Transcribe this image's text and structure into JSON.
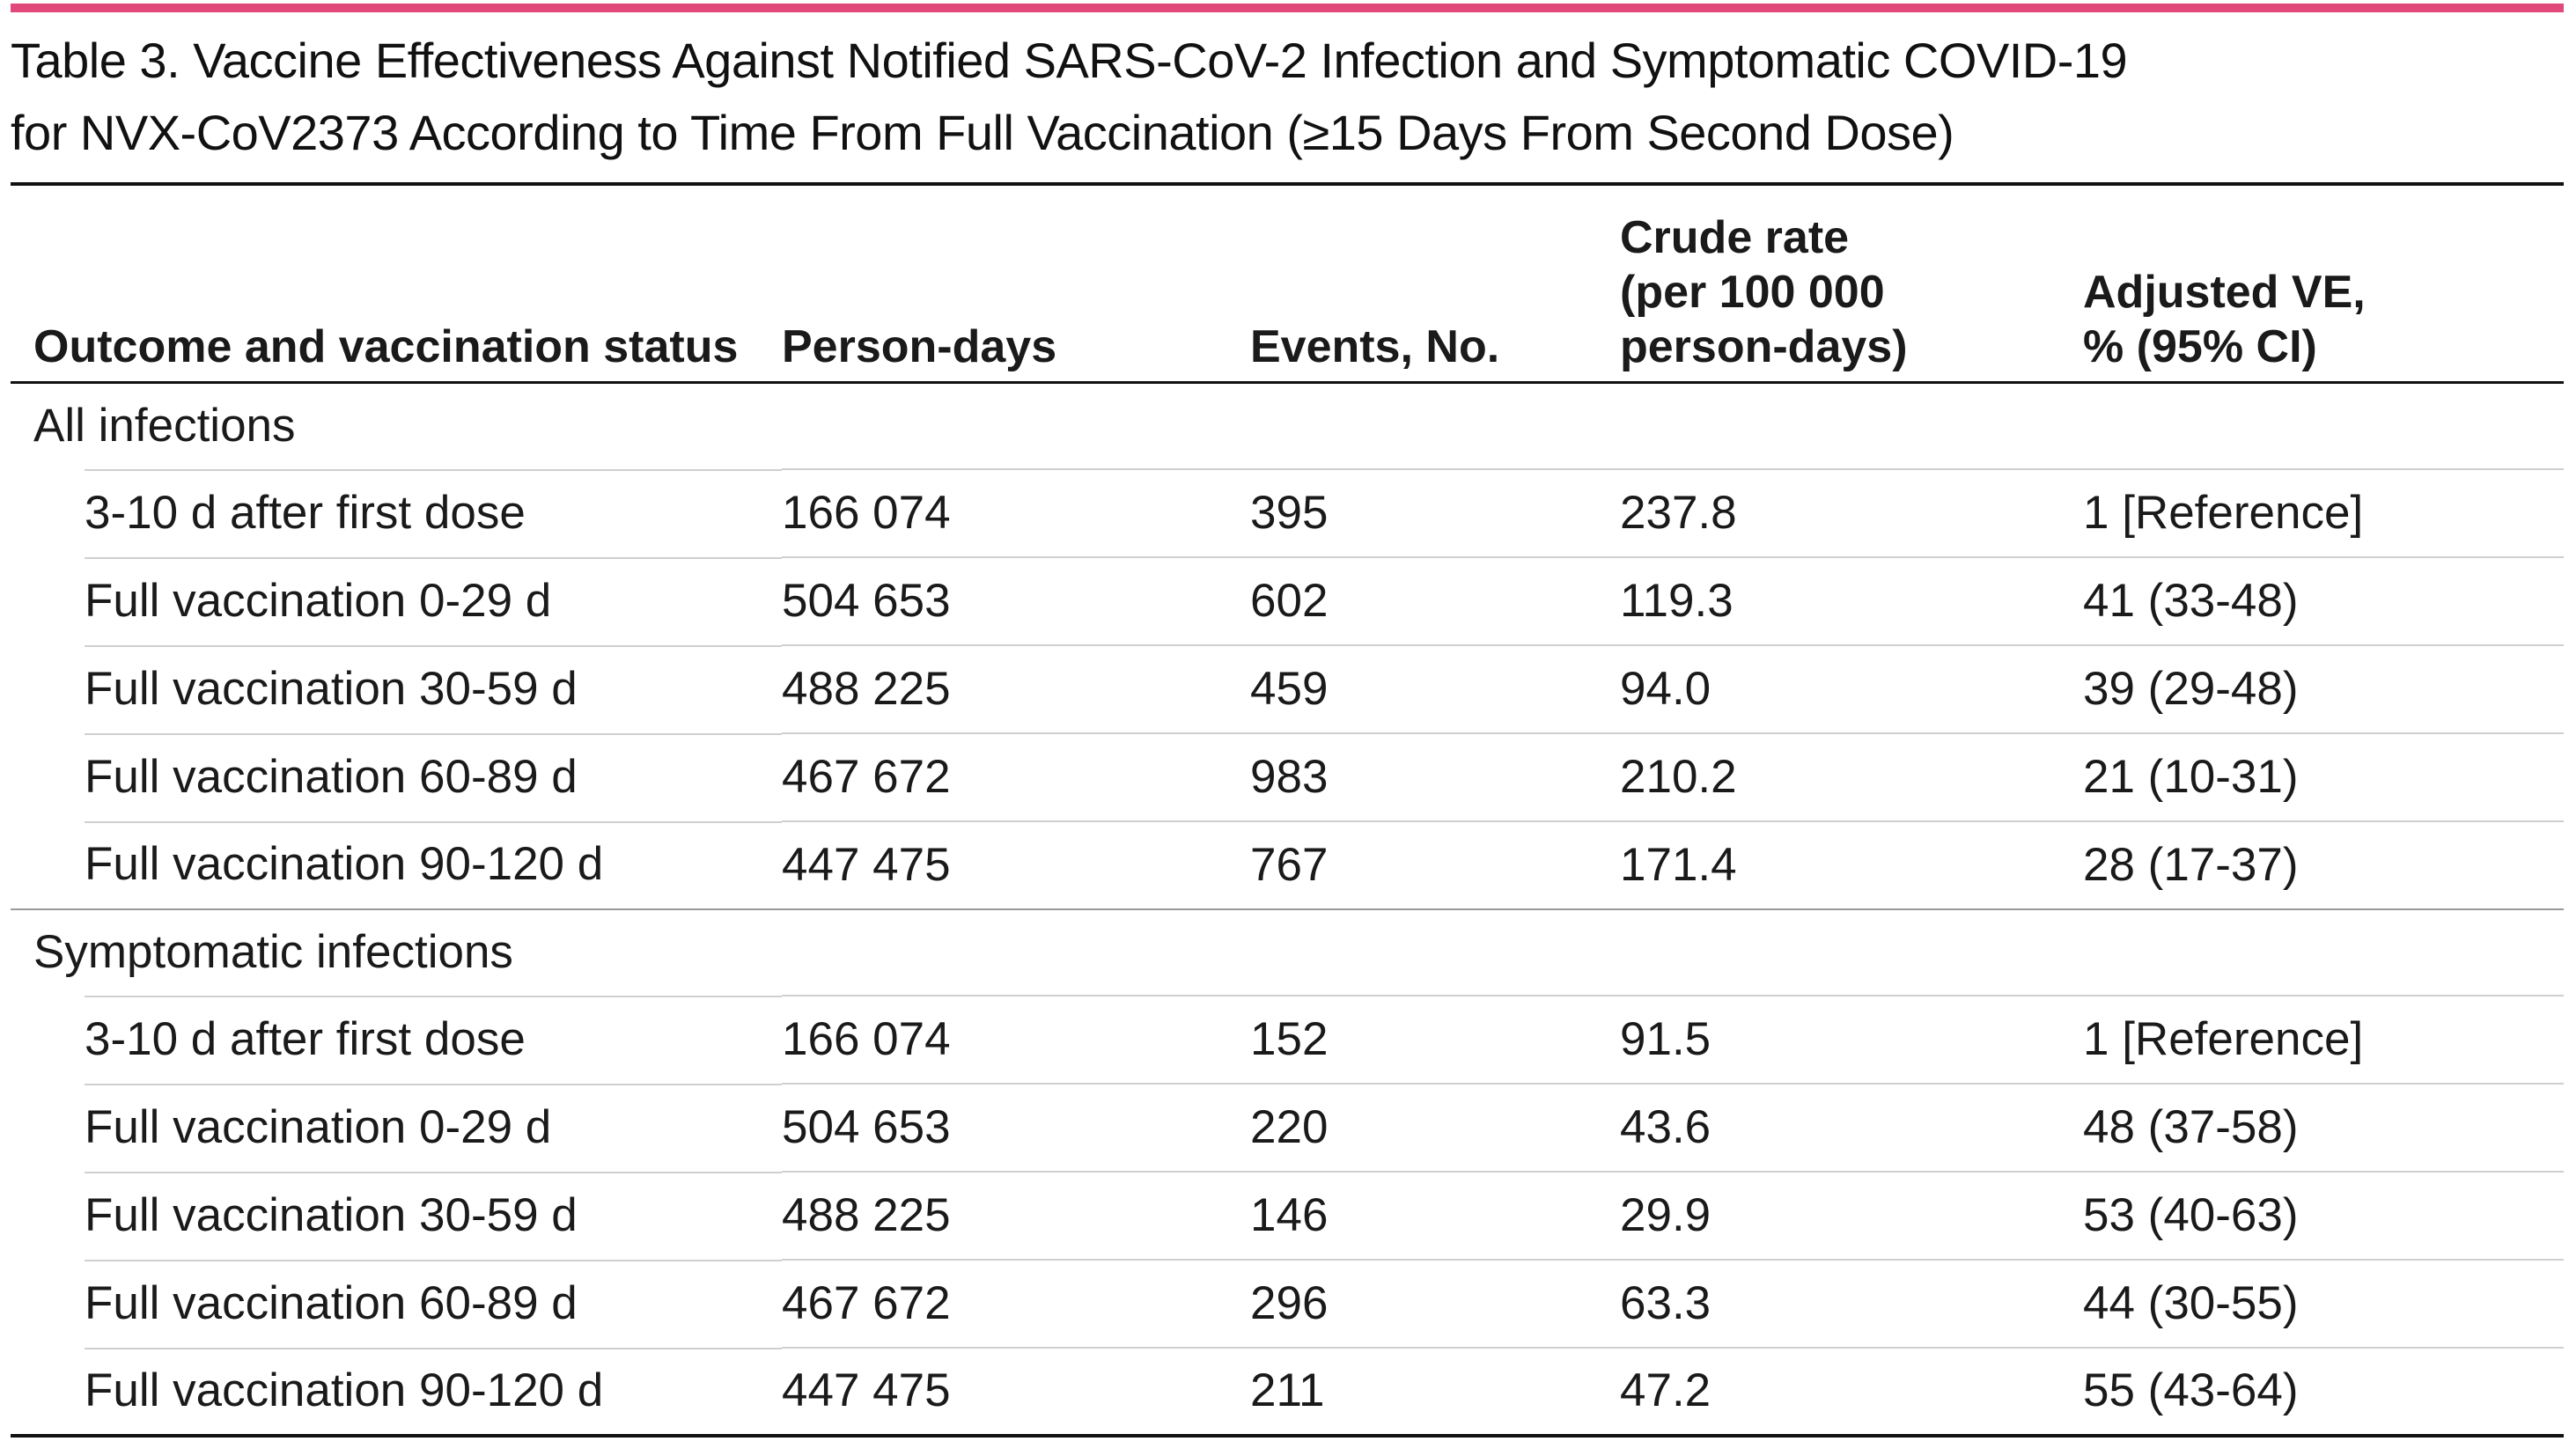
{
  "table_title": {
    "line1": "Table 3. Vaccine Effectiveness Against Notified SARS-CoV-2 Infection and Symptomatic COVID-19",
    "line2": "for NVX-CoV2373 According to Time From Full Vaccination (≥15 Days From Second Dose)"
  },
  "accent_color": "#e0497a",
  "columns": {
    "outcome": "Outcome and vaccination status",
    "person_days": "Person-days",
    "events": "Events, No.",
    "crude_rate_l1": "Crude rate",
    "crude_rate_l2": "(per 100 000",
    "crude_rate_l3": "person-days)",
    "adj_ve_l1": "Adjusted VE,",
    "adj_ve_l2": "% (95% CI)"
  },
  "groups": [
    {
      "label": "All infections",
      "rows": [
        {
          "status": "3-10 d after first dose",
          "person_days": "166 074",
          "events": "395",
          "crude_rate": "237.8",
          "adjusted_ve": "1 [Reference]"
        },
        {
          "status": "Full vaccination 0-29 d",
          "person_days": "504 653",
          "events": "602",
          "crude_rate": "119.3",
          "adjusted_ve": "41 (33-48)"
        },
        {
          "status": "Full vaccination 30-59 d",
          "person_days": "488 225",
          "events": "459",
          "crude_rate": "94.0",
          "adjusted_ve": "39 (29-48)"
        },
        {
          "status": "Full vaccination 60-89 d",
          "person_days": "467 672",
          "events": "983",
          "crude_rate": "210.2",
          "adjusted_ve": "21 (10-31)"
        },
        {
          "status": "Full vaccination 90-120 d",
          "person_days": "447 475",
          "events": "767",
          "crude_rate": "171.4",
          "adjusted_ve": "28 (17-37)"
        }
      ]
    },
    {
      "label": "Symptomatic infections",
      "rows": [
        {
          "status": "3-10 d after first dose",
          "person_days": "166 074",
          "events": "152",
          "crude_rate": "91.5",
          "adjusted_ve": "1 [Reference]"
        },
        {
          "status": "Full vaccination 0-29 d",
          "person_days": "504 653",
          "events": "220",
          "crude_rate": "43.6",
          "adjusted_ve": "48 (37-58)"
        },
        {
          "status": "Full vaccination 30-59 d",
          "person_days": "488 225",
          "events": "146",
          "crude_rate": "29.9",
          "adjusted_ve": "53 (40-63)"
        },
        {
          "status": "Full vaccination 60-89 d",
          "person_days": "467 672",
          "events": "296",
          "crude_rate": "63.3",
          "adjusted_ve": "44 (30-55)"
        },
        {
          "status": "Full vaccination 90-120 d",
          "person_days": "447 475",
          "events": "211",
          "crude_rate": "47.2",
          "adjusted_ve": "55 (43-64)"
        }
      ]
    }
  ]
}
